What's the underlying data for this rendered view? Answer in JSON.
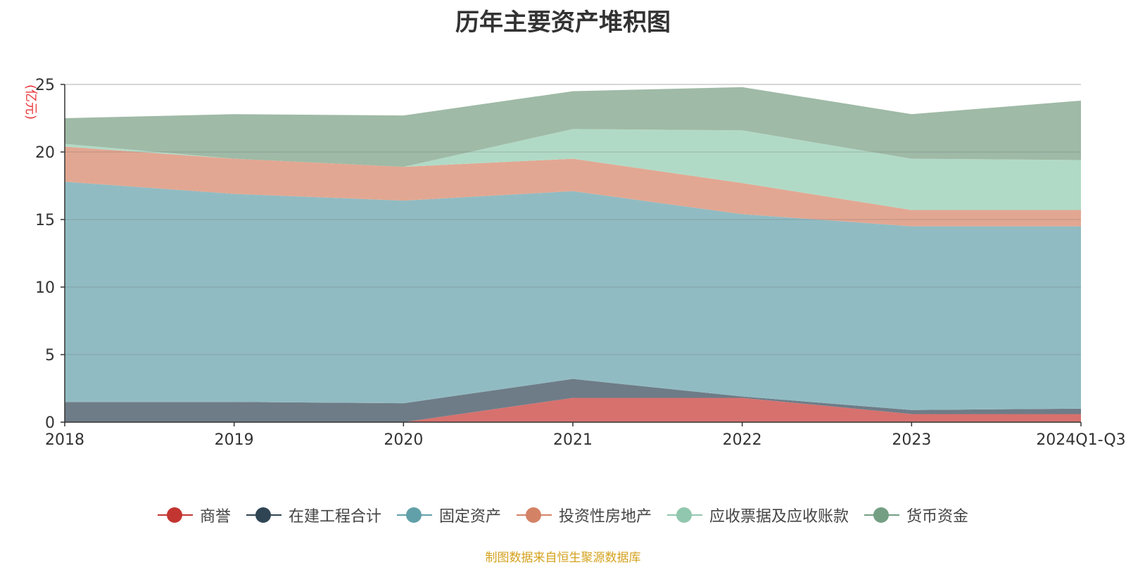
{
  "chart_data": {
    "type": "area",
    "title": "历年主要资产堆积图",
    "ylabel": "(亿元)",
    "xlabel": "",
    "ylim": [
      0,
      25
    ],
    "yticks": [
      0,
      5,
      10,
      15,
      20,
      25
    ],
    "categories": [
      "2018",
      "2019",
      "2020",
      "2021",
      "2022",
      "2023",
      "2024Q1-Q3"
    ],
    "stacked": true,
    "grid": true,
    "legend_position": "bottom",
    "series": [
      {
        "name": "商誉",
        "color": "#c23531",
        "area_color": "#d7716e",
        "values": [
          0.0,
          0.0,
          0.0,
          1.8,
          1.8,
          0.6,
          0.6
        ]
      },
      {
        "name": "在建工程合计",
        "color": "#2f4554",
        "area_color": "#6e7c87",
        "values": [
          1.5,
          1.5,
          1.4,
          1.4,
          0.1,
          0.3,
          0.4
        ]
      },
      {
        "name": "固定资产",
        "color": "#61a0a8",
        "area_color": "#91bbc2",
        "values": [
          16.3,
          15.4,
          15.0,
          13.9,
          13.5,
          13.6,
          13.5
        ]
      },
      {
        "name": "投资性房地产",
        "color": "#d48265",
        "area_color": "#e2a792",
        "values": [
          2.6,
          2.6,
          2.5,
          2.4,
          2.3,
          1.2,
          1.2
        ]
      },
      {
        "name": "应收票据及应收账款",
        "color": "#91c7ae",
        "area_color": "#b1dac6",
        "values": [
          0.2,
          0.0,
          0.0,
          2.2,
          3.9,
          3.8,
          3.7
        ]
      },
      {
        "name": "货币资金",
        "color": "#749f83",
        "area_color": "#9fbaa6",
        "values": [
          1.9,
          3.3,
          3.8,
          2.8,
          3.2,
          3.3,
          4.4
        ]
      }
    ]
  },
  "source_note": "制图数据来自恒生聚源数据库"
}
